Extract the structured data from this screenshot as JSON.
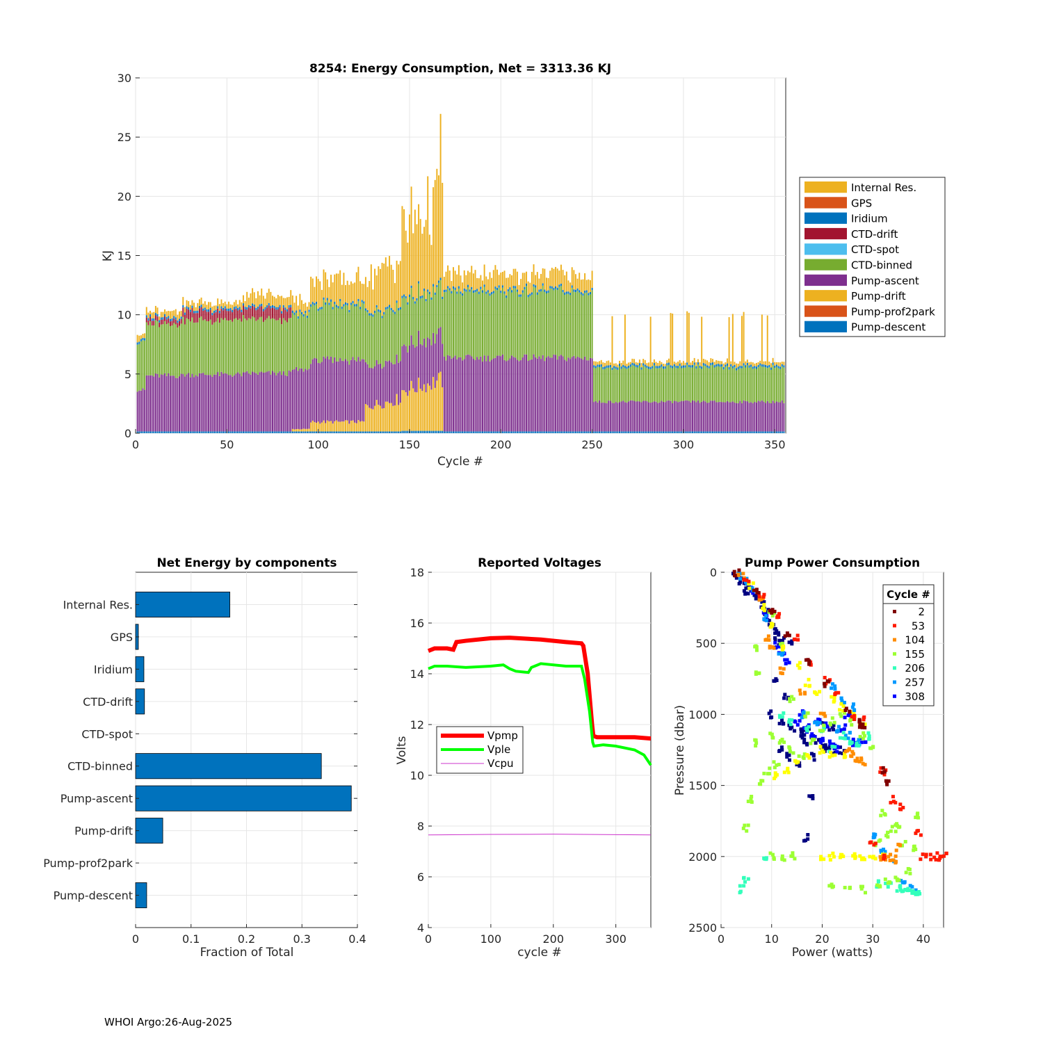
{
  "footer": "WHOI Argo:26-Aug-2025",
  "chart_data": [
    {
      "type": "bar",
      "stacked": true,
      "title": "8254: Energy Consumption,  Net = 3313.36 KJ",
      "xlabel": "Cycle #",
      "ylabel": "KJ",
      "xlim": [
        0,
        356
      ],
      "ylim": [
        0,
        30
      ],
      "xticks": [
        "0",
        "50",
        "100",
        "150",
        "200",
        "250",
        "300",
        "350"
      ],
      "yticks": [
        "0",
        "5",
        "10",
        "15",
        "20",
        "25",
        "30"
      ],
      "legend_position": "right-outside",
      "legend": [
        "Internal Res.",
        "GPS",
        "Iridium",
        "CTD-drift",
        "CTD-spot",
        "CTD-binned",
        "Pump-ascent",
        "Pump-drift",
        "Pump-prof2park",
        "Pump-descent"
      ],
      "colors": {
        "Internal Res.": "#EDB120",
        "GPS": "#D95319",
        "Iridium": "#0072BD",
        "CTD-drift": "#A2142F",
        "CTD-spot": "#4DBEEE",
        "CTD-binned": "#77AC30",
        "Pump-ascent": "#7E2F8E",
        "Pump-drift": "#EDB120",
        "Pump-prof2park": "#D95319",
        "Pump-descent": "#0072BD"
      },
      "segments_note": "Approximate per-cycle profile read from figure",
      "profile": [
        {
          "from": 1,
          "to": 5,
          "descent": 0.15,
          "ascent": 3.5,
          "drift": 0,
          "binned": 4.0,
          "ctddrift": 0,
          "internal": 0.5
        },
        {
          "from": 6,
          "to": 25,
          "descent": 0.15,
          "ascent": 4.7,
          "drift": 0,
          "binned": 4.4,
          "ctddrift": 0.4,
          "internal": 0.5
        },
        {
          "from": 26,
          "to": 60,
          "descent": 0.15,
          "ascent": 4.8,
          "drift": 0,
          "binned": 4.6,
          "ctddrift": 0.8,
          "internal": 0.5
        },
        {
          "from": 61,
          "to": 85,
          "descent": 0.15,
          "ascent": 4.9,
          "drift": 0,
          "binned": 4.5,
          "ctddrift": 0.9,
          "internal": 1.0
        },
        {
          "from": 86,
          "to": 95,
          "descent": 0.15,
          "ascent": 5.0,
          "drift": 0.2,
          "binned": 4.6,
          "ctddrift": 0,
          "internal": 1.0
        },
        {
          "from": 96,
          "to": 125,
          "descent": 0.15,
          "ascent": 5.2,
          "drift": 0.8,
          "binned": 4.6,
          "ctddrift": 0,
          "internal": 2.0
        },
        {
          "from": 126,
          "to": 145,
          "descent": 0.15,
          "ascent": 3.5,
          "drift": 3.5,
          "binned": 4.3,
          "ctddrift": 0,
          "internal": 5.0
        },
        {
          "from": 146,
          "to": 168,
          "descent": 0.2,
          "ascent": 3.8,
          "drift": 4.3,
          "binned": 3.9,
          "ctddrift": 0,
          "internal": 7.5
        },
        {
          "from": 169,
          "to": 250,
          "descent": 0.15,
          "ascent": 6.2,
          "drift": 0,
          "binned": 5.6,
          "ctddrift": 0,
          "internal": 1.3
        },
        {
          "from": 251,
          "to": 356,
          "descent": 0.15,
          "ascent": 2.5,
          "drift": 0,
          "binned": 2.9,
          "ctddrift": 0,
          "internal": 0.3
        }
      ]
    },
    {
      "type": "bar",
      "orientation": "horizontal",
      "title": "Net Energy by components",
      "xlabel": "Fraction of Total",
      "xlim": [
        0,
        0.4
      ],
      "xticks": [
        "0",
        "0.1",
        "0.2",
        "0.3",
        "0.4"
      ],
      "categories": [
        "Internal Res.",
        "GPS",
        "Iridium",
        "CTD-drift",
        "CTD-spot",
        "CTD-binned",
        "Pump-ascent",
        "Pump-drift",
        "Pump-prof2park",
        "Pump-descent"
      ],
      "values": [
        0.17,
        0.005,
        0.015,
        0.016,
        0,
        0.335,
        0.389,
        0.049,
        0,
        0.02
      ],
      "color": "#0072BD"
    },
    {
      "type": "line",
      "title": "Reported Voltages",
      "xlabel": "cycle #",
      "ylabel": "Volts",
      "xlim": [
        0,
        356
      ],
      "ylim": [
        4,
        18
      ],
      "xticks": [
        "0",
        "100",
        "200",
        "300"
      ],
      "yticks": [
        "4",
        "6",
        "8",
        "10",
        "12",
        "14",
        "16",
        "18"
      ],
      "legend_position": "left-middle",
      "series": [
        {
          "name": "Vpmp",
          "color": "#FF0000",
          "x": [
            0,
            10,
            30,
            40,
            45,
            60,
            100,
            130,
            180,
            220,
            245,
            248,
            255,
            262,
            264,
            270,
            300,
            330,
            356
          ],
          "y": [
            14.9,
            15.0,
            15.0,
            14.95,
            15.25,
            15.3,
            15.4,
            15.42,
            15.35,
            15.25,
            15.2,
            15.1,
            14.0,
            12.0,
            11.55,
            11.5,
            11.5,
            11.5,
            11.45
          ]
        },
        {
          "name": "Vple",
          "color": "#00FF00",
          "x": [
            0,
            10,
            30,
            60,
            100,
            120,
            130,
            140,
            160,
            165,
            175,
            180,
            220,
            245,
            250,
            258,
            263,
            265,
            280,
            300,
            330,
            345,
            356
          ],
          "y": [
            14.2,
            14.3,
            14.3,
            14.25,
            14.3,
            14.35,
            14.2,
            14.1,
            14.05,
            14.25,
            14.35,
            14.4,
            14.3,
            14.3,
            13.8,
            12.5,
            11.3,
            11.15,
            11.2,
            11.15,
            11.0,
            10.8,
            10.4
          ]
        },
        {
          "name": "Vcpu",
          "color": "#CC33CC",
          "x": [
            0,
            100,
            200,
            300,
            356
          ],
          "y": [
            7.65,
            7.67,
            7.68,
            7.66,
            7.65
          ]
        }
      ]
    },
    {
      "type": "scatter",
      "title": "Pump Power Consumption",
      "xlabel": "Power (watts)",
      "ylabel": "Pressure (dbar)",
      "xlim": [
        0,
        44
      ],
      "ylim": [
        0,
        2500
      ],
      "y_reversed": true,
      "xticks": [
        "0",
        "10",
        "20",
        "30",
        "40"
      ],
      "yticks": [
        "0",
        "500",
        "1000",
        "1500",
        "2000",
        "2500"
      ],
      "legend_title": "Cycle #",
      "legend_position": "top-right",
      "series": [
        {
          "name": "2",
          "color": "#800000"
        },
        {
          "name": "53",
          "color": "#FF1A00"
        },
        {
          "name": "104",
          "color": "#FF8C00"
        },
        {
          "name": "155",
          "color": "#9CFF33"
        },
        {
          "name": "206",
          "color": "#33FFBB"
        },
        {
          "name": "257",
          "color": "#0099FF"
        },
        {
          "name": "308",
          "color": "#0000FF"
        }
      ],
      "point_groups": [
        {
          "color": "#000080",
          "x": [
            3,
            4,
            5,
            6,
            7,
            8,
            9,
            10,
            11,
            12,
            11,
            13,
            10,
            12,
            14,
            16,
            17,
            19,
            21,
            24,
            18,
            15,
            13,
            12,
            22,
            20,
            17,
            6,
            5,
            9,
            11,
            12,
            14,
            16,
            18,
            20,
            22,
            18,
            17
          ],
          "y": [
            20,
            60,
            100,
            130,
            180,
            230,
            280,
            360,
            420,
            520,
            760,
            880,
            1000,
            1050,
            1100,
            1150,
            1200,
            1180,
            1220,
            1250,
            1300,
            1350,
            1300,
            1250,
            1100,
            1050,
            1080,
            110,
            140,
            320,
            450,
            470,
            500,
            1120,
            1160,
            1240,
            1260,
            1580,
            1870
          ]
        },
        {
          "color": "#0000FF",
          "x": [
            6,
            9,
            11,
            12,
            13,
            15,
            17,
            18,
            20,
            22,
            23,
            24,
            16,
            19,
            21,
            25,
            26,
            28
          ],
          "y": [
            130,
            310,
            520,
            580,
            620,
            1050,
            1100,
            1150,
            1180,
            1200,
            1250,
            1100,
            1000,
            1050,
            1080,
            1020,
            1200,
            1180
          ]
        },
        {
          "color": "#0099FF",
          "x": [
            4,
            5,
            6,
            9,
            12,
            16,
            19,
            23,
            25,
            27,
            30,
            32,
            34,
            36,
            38,
            22,
            24,
            26
          ],
          "y": [
            30,
            60,
            110,
            330,
            560,
            1000,
            1050,
            1100,
            1150,
            1200,
            1850,
            1960,
            2050,
            2160,
            2230,
            800,
            900,
            950
          ]
        },
        {
          "color": "#33FFBB",
          "x": [
            4,
            5,
            9,
            12,
            20,
            24,
            26,
            31,
            33,
            35,
            36,
            37,
            38,
            39,
            14,
            17,
            22,
            27,
            29
          ],
          "y": [
            2230,
            2170,
            2000,
            1000,
            1100,
            1150,
            1200,
            2190,
            2200,
            2220,
            2230,
            2240,
            2250,
            2250,
            1050,
            1100,
            1250,
            1200,
            1150
          ]
        },
        {
          "color": "#9CFF33",
          "x": [
            5,
            6,
            7,
            7,
            7,
            10,
            12,
            14,
            16,
            18,
            20,
            22,
            24,
            26,
            28,
            30,
            32,
            34,
            36,
            38,
            39,
            35,
            33,
            31,
            10,
            12,
            14,
            11,
            9,
            8,
            22,
            25,
            28,
            31,
            33,
            35,
            37,
            10,
            12,
            14,
            17
          ],
          "y": [
            1800,
            1600,
            1200,
            700,
            540,
            1150,
            1200,
            1250,
            1300,
            1200,
            1100,
            1050,
            1000,
            1050,
            1150,
            1250,
            1700,
            1800,
            1900,
            1950,
            1720,
            1780,
            1850,
            1900,
            2000,
            2010,
            2000,
            1350,
            1400,
            1480,
            2200,
            2210,
            2230,
            2200,
            2170,
            2150,
            2100,
            300,
            500,
            900,
            1000
          ]
        },
        {
          "color": "#FFFF00",
          "x": [
            6,
            8,
            10,
            12,
            15,
            17,
            19,
            22,
            24,
            26,
            28,
            24,
            22,
            20,
            17,
            15,
            13,
            11,
            20,
            22,
            24,
            26,
            28,
            30,
            32
          ],
          "y": [
            90,
            250,
            380,
            520,
            650,
            780,
            850,
            900,
            950,
            1000,
            1050,
            1300,
            1280,
            1250,
            1300,
            1350,
            1400,
            1430,
            2000,
            2000,
            2000,
            2000,
            2000,
            2000,
            2000
          ]
        },
        {
          "color": "#FF8C00",
          "x": [
            4,
            8,
            9,
            10,
            12,
            16,
            20,
            25,
            26,
            27,
            28,
            32,
            33,
            34,
            35
          ],
          "y": [
            20,
            190,
            460,
            540,
            700,
            850,
            1000,
            1250,
            1280,
            1310,
            1330,
            2000,
            2010,
            2020,
            1940
          ]
        },
        {
          "color": "#FF1A00",
          "x": [
            5,
            8,
            11,
            15,
            18,
            21,
            23,
            26,
            28,
            32,
            34,
            36,
            39,
            40,
            42,
            43,
            44,
            30,
            32
          ],
          "y": [
            40,
            160,
            300,
            460,
            640,
            760,
            840,
            1010,
            1040,
            1400,
            1600,
            1650,
            1830,
            2000,
            2000,
            2000,
            2000,
            1900,
            2000
          ]
        },
        {
          "color": "#800000",
          "x": [
            3,
            7,
            10,
            13,
            17,
            21,
            25,
            27,
            28,
            32,
            33
          ],
          "y": [
            10,
            120,
            270,
            430,
            640,
            780,
            960,
            1050,
            1070,
            1390,
            1480
          ]
        }
      ]
    }
  ]
}
